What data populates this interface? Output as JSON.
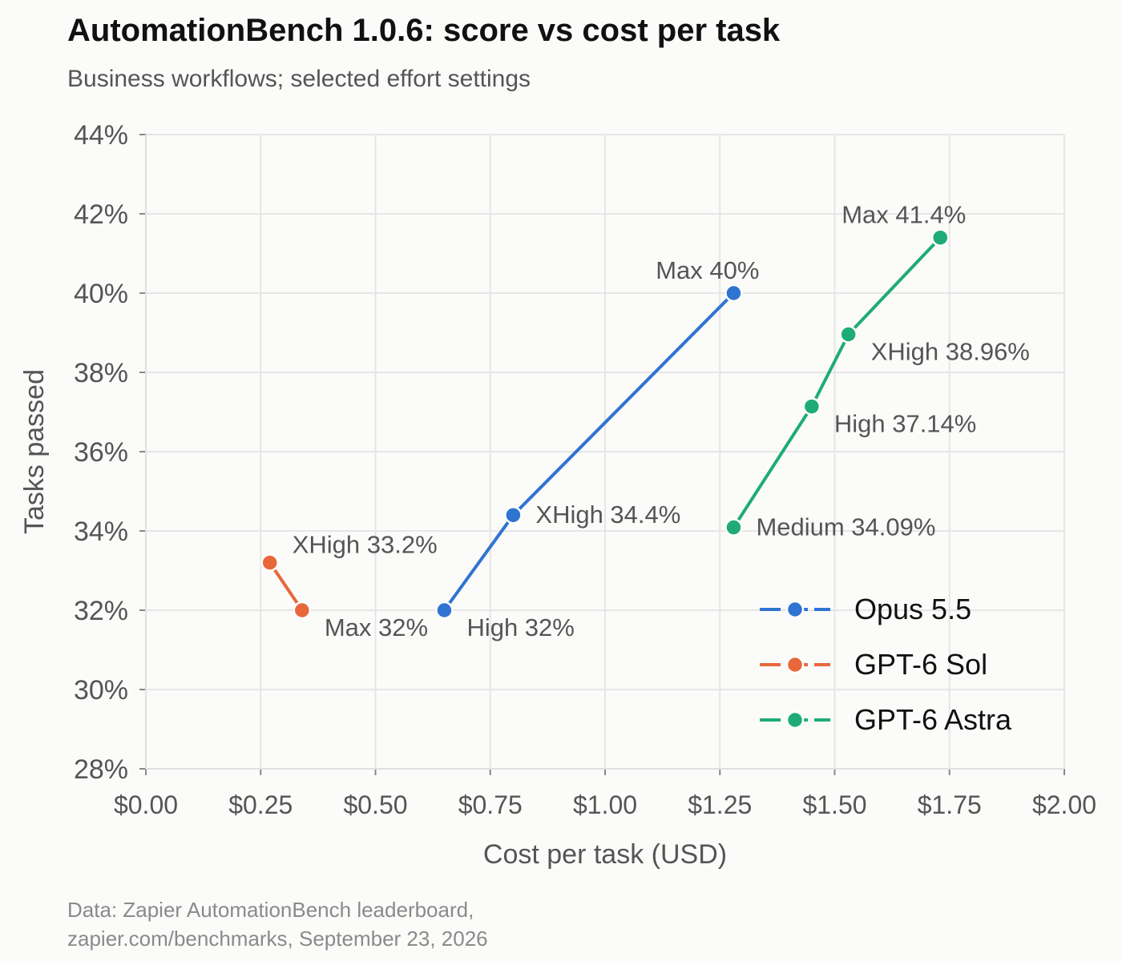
{
  "header": {
    "title": "AutomationBench 1.0.6: score vs cost per task",
    "subtitle": "Business workflows; selected effort settings"
  },
  "footer": {
    "line1": "Data: Zapier AutomationBench leaderboard,",
    "line2": "zapier.com/benchmarks, September 23, 2026"
  },
  "chart_data": {
    "type": "line",
    "xlabel": "Cost per task (USD)",
    "ylabel": "Tasks passed",
    "xlim": [
      0,
      2
    ],
    "ylim": [
      28,
      44
    ],
    "x_ticks": [
      0,
      0.25,
      0.5,
      0.75,
      1,
      1.25,
      1.5,
      1.75,
      2
    ],
    "x_tick_labels": [
      "$0.00",
      "$0.25",
      "$0.50",
      "$0.75",
      "$1.00",
      "$1.25",
      "$1.50",
      "$1.75",
      "$2.00"
    ],
    "y_ticks": [
      28,
      30,
      32,
      34,
      36,
      38,
      40,
      42,
      44
    ],
    "y_tick_labels": [
      "28%",
      "30%",
      "32%",
      "34%",
      "36%",
      "38%",
      "40%",
      "42%",
      "44%"
    ],
    "grid": true,
    "legend_position": "bottom-right",
    "series": [
      {
        "name": "Opus 5.5",
        "color": "#2f74d0",
        "points": [
          {
            "x": 0.65,
            "y": 32,
            "label": "High 32%",
            "label_pos": "below-right"
          },
          {
            "x": 0.8,
            "y": 34.4,
            "label": "XHigh 34.4%",
            "label_pos": "right"
          },
          {
            "x": 1.28,
            "y": 40,
            "label": "Max 40%",
            "label_pos": "above-left"
          }
        ]
      },
      {
        "name": "GPT-6 Sol",
        "color": "#e8673a",
        "points": [
          {
            "x": 0.27,
            "y": 33.2,
            "label": "XHigh 33.2%",
            "label_pos": "above-right"
          },
          {
            "x": 0.34,
            "y": 32,
            "label": "Max 32%",
            "label_pos": "below-right"
          }
        ]
      },
      {
        "name": "GPT-6 Astra",
        "color": "#1fab78",
        "points": [
          {
            "x": 1.28,
            "y": 34.09,
            "label": "Medium 34.09%",
            "label_pos": "right"
          },
          {
            "x": 1.45,
            "y": 37.14,
            "label": "High 37.14%",
            "label_pos": "below-right"
          },
          {
            "x": 1.53,
            "y": 38.96,
            "label": "XHigh 38.96%",
            "label_pos": "below-right"
          },
          {
            "x": 1.73,
            "y": 41.4,
            "label": "Max 41.4%",
            "label_pos": "above-left"
          }
        ]
      }
    ]
  }
}
